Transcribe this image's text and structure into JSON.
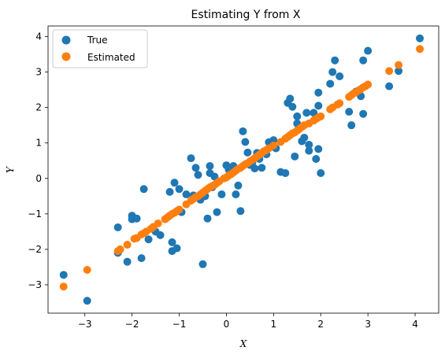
{
  "chart_data": {
    "type": "scatter",
    "title": "Estimating Y from X",
    "xlabel": "X",
    "ylabel": "Y",
    "xlim": [
      -3.78,
      4.5
    ],
    "ylim": [
      -3.8,
      4.3
    ],
    "xticks": [
      -3,
      -2,
      -1,
      0,
      1,
      2,
      3,
      4
    ],
    "yticks": [
      -3,
      -2,
      -1,
      0,
      1,
      2,
      3,
      4
    ],
    "grid": false,
    "legend_position": "top-left",
    "series": [
      {
        "name": "True",
        "color": "#1f77b4",
        "points": [
          [
            -3.45,
            -2.72
          ],
          [
            -2.95,
            -3.45
          ],
          [
            -2.3,
            -1.38
          ],
          [
            -2.3,
            -2.1
          ],
          [
            -2.1,
            -2.35
          ],
          [
            -2.0,
            -1.05
          ],
          [
            -2.0,
            -1.15
          ],
          [
            -1.9,
            -1.13
          ],
          [
            -1.75,
            -0.3
          ],
          [
            -1.8,
            -2.25
          ],
          [
            -1.65,
            -1.72
          ],
          [
            -1.5,
            -1.5
          ],
          [
            -1.4,
            -1.6
          ],
          [
            -1.2,
            -0.38
          ],
          [
            -1.15,
            -2.05
          ],
          [
            -1.15,
            -1.8
          ],
          [
            -1.1,
            -0.12
          ],
          [
            -1.05,
            -1.97
          ],
          [
            -1.0,
            -0.3
          ],
          [
            -0.95,
            -0.95
          ],
          [
            -0.85,
            -0.45
          ],
          [
            -0.75,
            0.57
          ],
          [
            -0.7,
            -0.48
          ],
          [
            -0.65,
            0.3
          ],
          [
            -0.6,
            0.1
          ],
          [
            -0.55,
            -0.6
          ],
          [
            -0.5,
            -2.42
          ],
          [
            -0.45,
            -0.5
          ],
          [
            -0.4,
            -1.13
          ],
          [
            -0.35,
            0.35
          ],
          [
            -0.35,
            0.15
          ],
          [
            -0.3,
            -0.25
          ],
          [
            -0.25,
            0.05
          ],
          [
            -0.2,
            -0.95
          ],
          [
            -0.1,
            -0.45
          ],
          [
            0.0,
            0.37
          ],
          [
            0.05,
            0.25
          ],
          [
            0.15,
            0.35
          ],
          [
            0.2,
            -0.45
          ],
          [
            0.25,
            -0.2
          ],
          [
            0.3,
            -0.92
          ],
          [
            0.35,
            1.33
          ],
          [
            0.4,
            1.03
          ],
          [
            0.45,
            0.73
          ],
          [
            0.5,
            0.38
          ],
          [
            0.55,
            0.45
          ],
          [
            0.6,
            0.28
          ],
          [
            0.65,
            0.72
          ],
          [
            0.7,
            0.55
          ],
          [
            0.75,
            0.3
          ],
          [
            0.85,
            0.68
          ],
          [
            0.9,
            1.02
          ],
          [
            1.0,
            1.08
          ],
          [
            1.05,
            0.85
          ],
          [
            1.15,
            0.18
          ],
          [
            1.25,
            0.15
          ],
          [
            1.3,
            2.13
          ],
          [
            1.35,
            2.25
          ],
          [
            1.4,
            2.02
          ],
          [
            1.45,
            0.62
          ],
          [
            1.5,
            1.75
          ],
          [
            1.5,
            1.55
          ],
          [
            1.55,
            1.45
          ],
          [
            1.6,
            1.05
          ],
          [
            1.65,
            1.15
          ],
          [
            1.7,
            1.85
          ],
          [
            1.75,
            0.78
          ],
          [
            1.75,
            0.95
          ],
          [
            1.85,
            1.85
          ],
          [
            1.9,
            0.55
          ],
          [
            1.95,
            0.83
          ],
          [
            1.95,
            2.42
          ],
          [
            1.95,
            2.05
          ],
          [
            2.0,
            0.15
          ],
          [
            2.2,
            2.67
          ],
          [
            2.25,
            3.0
          ],
          [
            2.3,
            3.33
          ],
          [
            2.4,
            2.88
          ],
          [
            2.6,
            1.88
          ],
          [
            2.65,
            1.5
          ],
          [
            2.75,
            2.45
          ],
          [
            2.85,
            2.32
          ],
          [
            2.9,
            3.33
          ],
          [
            2.9,
            1.82
          ],
          [
            3.0,
            3.6
          ],
          [
            3.45,
            2.6
          ],
          [
            3.65,
            3.03
          ],
          [
            4.1,
            3.95
          ]
        ]
      },
      {
        "name": "Estimated",
        "color": "#ff7f0e",
        "points": [
          [
            -3.45,
            -3.05
          ],
          [
            -2.95,
            -2.58
          ],
          [
            -2.3,
            -2.05
          ],
          [
            -2.25,
            -2.0
          ],
          [
            -2.1,
            -1.87
          ],
          [
            -1.95,
            -1.7
          ],
          [
            -1.9,
            -1.68
          ],
          [
            -1.8,
            -1.58
          ],
          [
            -1.75,
            -1.55
          ],
          [
            -1.7,
            -1.5
          ],
          [
            -1.6,
            -1.42
          ],
          [
            -1.55,
            -1.37
          ],
          [
            -1.45,
            -1.27
          ],
          [
            -1.3,
            -1.15
          ],
          [
            -1.25,
            -1.1
          ],
          [
            -1.2,
            -1.05
          ],
          [
            -1.15,
            -1.0
          ],
          [
            -1.1,
            -0.97
          ],
          [
            -1.05,
            -0.92
          ],
          [
            -1.0,
            -0.88
          ],
          [
            -0.85,
            -0.73
          ],
          [
            -0.75,
            -0.63
          ],
          [
            -0.7,
            -0.58
          ],
          [
            -0.65,
            -0.53
          ],
          [
            -0.6,
            -0.5
          ],
          [
            -0.55,
            -0.45
          ],
          [
            -0.5,
            -0.4
          ],
          [
            -0.45,
            -0.35
          ],
          [
            -0.4,
            -0.3
          ],
          [
            -0.35,
            -0.25
          ],
          [
            -0.3,
            -0.22
          ],
          [
            -0.25,
            -0.18
          ],
          [
            -0.2,
            -0.13
          ],
          [
            -0.15,
            -0.08
          ],
          [
            -0.05,
            0.0
          ],
          [
            0.0,
            0.03
          ],
          [
            0.05,
            0.08
          ],
          [
            0.1,
            0.12
          ],
          [
            0.15,
            0.17
          ],
          [
            0.2,
            0.22
          ],
          [
            0.25,
            0.27
          ],
          [
            0.3,
            0.3
          ],
          [
            0.35,
            0.35
          ],
          [
            0.4,
            0.4
          ],
          [
            0.45,
            0.43
          ],
          [
            0.5,
            0.48
          ],
          [
            0.55,
            0.52
          ],
          [
            0.6,
            0.57
          ],
          [
            0.65,
            0.62
          ],
          [
            0.7,
            0.67
          ],
          [
            0.75,
            0.72
          ],
          [
            0.8,
            0.77
          ],
          [
            0.85,
            0.8
          ],
          [
            0.9,
            0.85
          ],
          [
            1.0,
            0.93
          ],
          [
            1.15,
            1.03
          ],
          [
            1.25,
            1.12
          ],
          [
            1.3,
            1.17
          ],
          [
            1.35,
            1.22
          ],
          [
            1.4,
            1.27
          ],
          [
            1.45,
            1.3
          ],
          [
            1.5,
            1.35
          ],
          [
            1.55,
            1.4
          ],
          [
            1.6,
            1.45
          ],
          [
            1.65,
            1.5
          ],
          [
            1.75,
            1.55
          ],
          [
            1.85,
            1.63
          ],
          [
            1.9,
            1.68
          ],
          [
            1.95,
            1.72
          ],
          [
            2.0,
            1.75
          ],
          [
            2.2,
            1.95
          ],
          [
            2.25,
            2.0
          ],
          [
            2.35,
            2.08
          ],
          [
            2.4,
            2.12
          ],
          [
            2.6,
            2.3
          ],
          [
            2.65,
            2.35
          ],
          [
            2.7,
            2.4
          ],
          [
            2.75,
            2.43
          ],
          [
            2.8,
            2.48
          ],
          [
            2.85,
            2.52
          ],
          [
            2.9,
            2.57
          ],
          [
            2.95,
            2.6
          ],
          [
            3.0,
            2.65
          ],
          [
            3.45,
            3.03
          ],
          [
            3.65,
            3.2
          ],
          [
            4.1,
            3.65
          ]
        ]
      }
    ]
  }
}
